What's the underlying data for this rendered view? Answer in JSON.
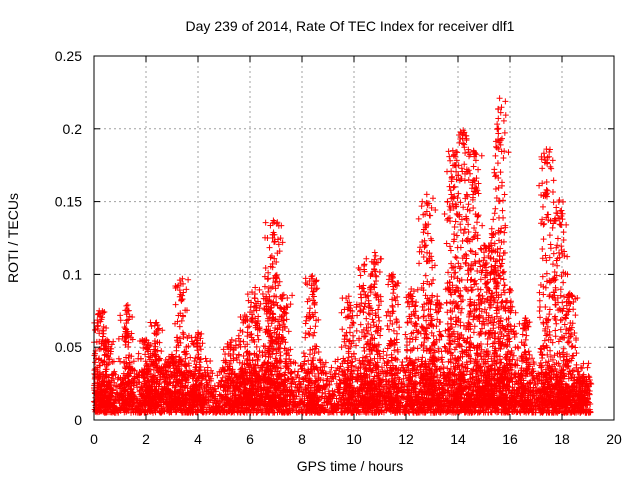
{
  "chart_data": {
    "type": "scatter",
    "title": "Day 239 of 2014, Rate Of TEC Index for receiver dlf1",
    "xlabel": "GPS time / hours",
    "ylabel": "ROTI / TECUs",
    "xlim": [
      0,
      20
    ],
    "ylim": [
      0,
      0.25
    ],
    "xticks": [
      0,
      2,
      4,
      6,
      8,
      10,
      12,
      14,
      16,
      18,
      20
    ],
    "xtick_labels": [
      "0",
      "2",
      "4",
      "6",
      "8",
      "10",
      "12",
      "14",
      "16",
      "18",
      "20"
    ],
    "yticks": [
      0,
      0.05,
      0.1,
      0.15,
      0.2,
      0.25
    ],
    "ytick_labels": [
      "0",
      "0.05",
      "0.1",
      "0.15",
      "0.2",
      "0.25"
    ],
    "grid": true,
    "marker": "+",
    "color": "#ff0000",
    "data_range_x": [
      0,
      19.1
    ],
    "baseline_range_y": [
      0.005,
      0.03
    ],
    "bursts": [
      {
        "t": 0.2,
        "peak": 0.075
      },
      {
        "t": 0.5,
        "peak": 0.055
      },
      {
        "t": 1.3,
        "peak": 0.079
      },
      {
        "t": 2.0,
        "peak": 0.055
      },
      {
        "t": 2.4,
        "peak": 0.067
      },
      {
        "t": 3.0,
        "peak": 0.045
      },
      {
        "t": 3.4,
        "peak": 0.097
      },
      {
        "t": 4.0,
        "peak": 0.06
      },
      {
        "t": 5.3,
        "peak": 0.055
      },
      {
        "t": 5.8,
        "peak": 0.072
      },
      {
        "t": 6.2,
        "peak": 0.091
      },
      {
        "t": 6.7,
        "peak": 0.088
      },
      {
        "t": 6.9,
        "peak": 0.137
      },
      {
        "t": 7.3,
        "peak": 0.086
      },
      {
        "t": 8.4,
        "peak": 0.099
      },
      {
        "t": 9.8,
        "peak": 0.085
      },
      {
        "t": 10.4,
        "peak": 0.107
      },
      {
        "t": 10.8,
        "peak": 0.115
      },
      {
        "t": 11.5,
        "peak": 0.1
      },
      {
        "t": 12.2,
        "peak": 0.09
      },
      {
        "t": 12.8,
        "peak": 0.155
      },
      {
        "t": 13.2,
        "peak": 0.085
      },
      {
        "t": 13.8,
        "peak": 0.185
      },
      {
        "t": 14.2,
        "peak": 0.199
      },
      {
        "t": 14.6,
        "peak": 0.185
      },
      {
        "t": 15.0,
        "peak": 0.12
      },
      {
        "t": 15.3,
        "peak": 0.128
      },
      {
        "t": 15.6,
        "peak": 0.221
      },
      {
        "t": 16.0,
        "peak": 0.09
      },
      {
        "t": 16.6,
        "peak": 0.07
      },
      {
        "t": 17.4,
        "peak": 0.186
      },
      {
        "t": 17.9,
        "peak": 0.151
      },
      {
        "t": 18.3,
        "peak": 0.087
      },
      {
        "t": 18.8,
        "peak": 0.03
      }
    ]
  }
}
